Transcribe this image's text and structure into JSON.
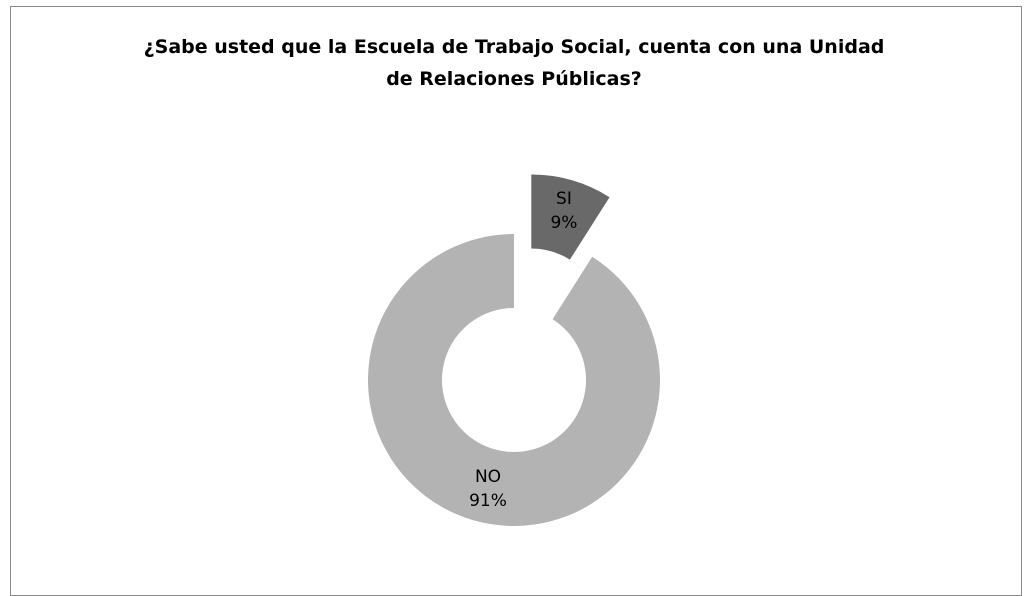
{
  "chart_data": {
    "type": "pie",
    "variant": "donut-exploded",
    "title_lines": [
      "¿Sabe usted que la Escuela de Trabajo Social, cuenta con una Unidad",
      "de Relaciones Públicas?"
    ],
    "slices": [
      {
        "label": "SI",
        "value": 9,
        "display": "9%",
        "color": "#696969",
        "exploded": true
      },
      {
        "label": "NO",
        "value": 91,
        "display": "91%",
        "color": "#b3b3b3",
        "exploded": false
      }
    ],
    "legend": "none",
    "data_labels": "on-slice"
  }
}
